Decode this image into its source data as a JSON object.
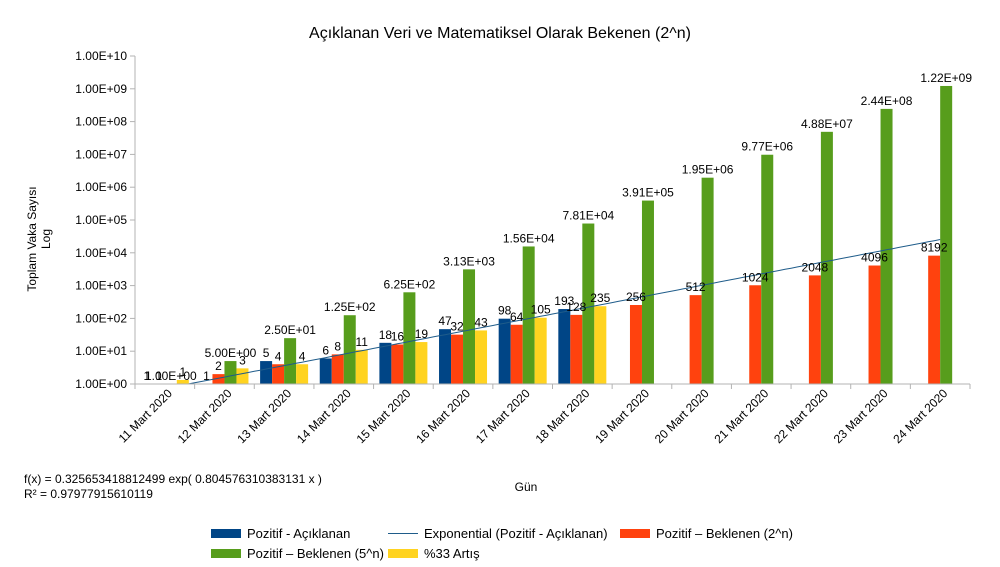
{
  "chart_data": {
    "type": "bar",
    "title": "Açıklanan Veri ve Matematiksel Olarak Bekenen (2^n)",
    "xlabel": "Gün",
    "ylabel": "Toplam Vaka Sayısı",
    "ylabel2": "Log",
    "yscale": "log",
    "ylim": [
      1,
      10000000000
    ],
    "yticks": [
      "1.00E+00",
      "1.00E+01",
      "1.00E+02",
      "1.00E+03",
      "1.00E+04",
      "1.00E+05",
      "1.00E+06",
      "1.00E+07",
      "1.00E+08",
      "1.00E+09",
      "1.00E+10"
    ],
    "grid": false,
    "legend_position": "bottom",
    "categories": [
      "11 Mart 2020",
      "12 Mart 2020",
      "13 Mart 2020",
      "14 Mart 2020",
      "15 Mart 2020",
      "16 Mart 2020",
      "17 Mart 2020",
      "18 Mart 2020",
      "19 Mart 2020",
      "20 Mart 2020",
      "21 Mart 2020",
      "22 Mart 2020",
      "23 Mart 2020",
      "24 Mart 2020"
    ],
    "series": [
      {
        "name": "Pozitif - Açıklanan",
        "color": "#004586",
        "values": [
          1,
          1,
          5,
          6,
          18,
          47,
          98,
          193,
          null,
          null,
          null,
          null,
          null,
          null
        ],
        "labels": [
          "1",
          "1",
          "5",
          "6",
          "18",
          "47",
          "98",
          "193",
          "",
          "",
          "",
          "",
          "",
          ""
        ]
      },
      {
        "name": "Pozitif – Beklenen (2^n)",
        "color": "#ff420e",
        "values": [
          1,
          2,
          4,
          8,
          16,
          32,
          64,
          128,
          256,
          512,
          1024,
          2048,
          4096,
          8192
        ],
        "labels": [
          "1",
          "2",
          "4",
          "8",
          "16",
          "32",
          "64",
          "128",
          "256",
          "512",
          "1024",
          "2048",
          "4096",
          "8192"
        ]
      },
      {
        "name": "Pozitif – Beklenen (5^n)",
        "color": "#579d1c",
        "values": [
          1,
          5,
          25,
          125,
          625,
          3130,
          15600,
          78100,
          391000,
          1950000,
          9770000,
          48800000,
          244000000,
          1220000000
        ],
        "labels": [
          "1.00E+00",
          "5.00E+00",
          "2.50E+01",
          "1.25E+02",
          "6.25E+02",
          "3.13E+03",
          "1.56E+04",
          "7.81E+04",
          "3.91E+05",
          "1.95E+06",
          "9.77E+06",
          "4.88E+07",
          "2.44E+08",
          "1.22E+09"
        ]
      },
      {
        "name": "%33 Artış",
        "color": "#ffd320",
        "values": [
          1.33,
          3,
          4,
          11,
          19,
          43,
          105,
          235,
          null,
          null,
          null,
          null,
          null,
          null
        ],
        "labels": [
          "1",
          "3",
          "4",
          "11",
          "19",
          "43",
          "105",
          "235",
          "",
          "",
          "",
          "",
          "",
          ""
        ]
      }
    ],
    "trendline": {
      "name": "Exponential (Pozitif - Açıklanan)",
      "color": "#1f5c8a",
      "a": 0.325653418812499,
      "b": 0.804576310383131,
      "equation": "f(x) = 0.325653418812499 exp( 0.804576310383131 x )",
      "r2": "R² = 0.97977915610119"
    }
  }
}
